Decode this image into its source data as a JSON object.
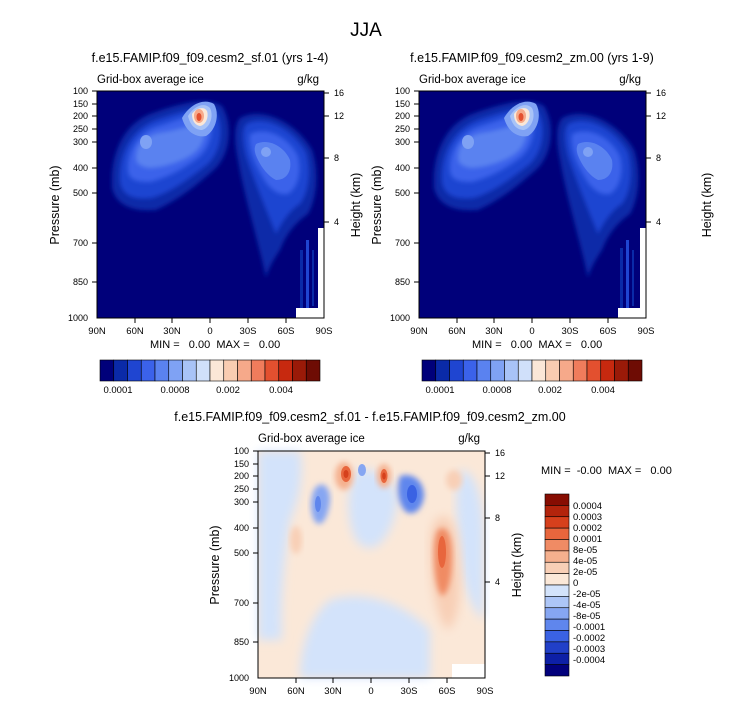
{
  "main_title": "JJA",
  "colors": {
    "main_scale": [
      "#00007a",
      "#0a2aa8",
      "#1f45d1",
      "#3b62ea",
      "#5a82f0",
      "#7fa2f4",
      "#a8c3f7",
      "#d0e0fa",
      "#fbe7d7",
      "#f9ccb1",
      "#f6a98a",
      "#f07c5c",
      "#e3502f",
      "#c7290f",
      "#9a1a08",
      "#6e0c04"
    ],
    "diff_scale": [
      "#02007c",
      "#0d1fa6",
      "#2140c8",
      "#3a62e3",
      "#5f86ed",
      "#86a6f2",
      "#adc6f7",
      "#d3e3fb",
      "#fbe8d8",
      "#f8cfb6",
      "#f5b08e",
      "#f08b64",
      "#e8663d",
      "#d6401c",
      "#b3240c",
      "#870d02"
    ]
  },
  "panels": [
    {
      "title": "f.e15.FAMIP.f09_f09.cesm2_sf.01 (yrs 1-4)",
      "left_label": "Grid-box average ice",
      "right_label": "g/kg",
      "ylabel": "Pressure (mb)",
      "y2label": "Height (km)",
      "stats": "MIN =   0.00  MAX =   0.00"
    },
    {
      "title": "f.e15.FAMIP.f09_f09.cesm2_zm.00 (yrs 1-9)",
      "left_label": "Grid-box average ice",
      "right_label": "g/kg",
      "ylabel": "Pressure (mb)",
      "y2label": "Height (km)",
      "stats": "MIN =   0.00  MAX =   0.00"
    },
    {
      "title": "f.e15.FAMIP.f09_f09.cesm2_sf.01 - f.e15.FAMIP.f09_f09.cesm2_zm.00",
      "left_label": "Grid-box average ice",
      "right_label": "g/kg",
      "ylabel": "Pressure (mb)",
      "y2label": "Height (km)",
      "stats": "MIN =  -0.00  MAX =   0.00"
    }
  ],
  "chart_data": {
    "type": "heatmap",
    "x_ticks": [
      "90N",
      "60N",
      "30N",
      "0",
      "30S",
      "60S",
      "90S"
    ],
    "y_ticks": [
      "100",
      "150",
      "200",
      "250",
      "300",
      "400",
      "500",
      "700",
      "850",
      "1000"
    ],
    "y2_ticks": [
      "16",
      "12",
      "8",
      "4"
    ],
    "main_colorbar_labels": [
      "0.0001",
      "0.0008",
      "0.002",
      "0.004"
    ],
    "diff_colorbar_labels": [
      "0.0004",
      "0.0003",
      "0.0002",
      "0.0001",
      "8e-05",
      "4e-05",
      "2e-05",
      "0",
      "-2e-05",
      "-4e-05",
      "-8e-05",
      "-0.0001",
      "-0.0002",
      "-0.0003",
      "-0.0004"
    ]
  }
}
